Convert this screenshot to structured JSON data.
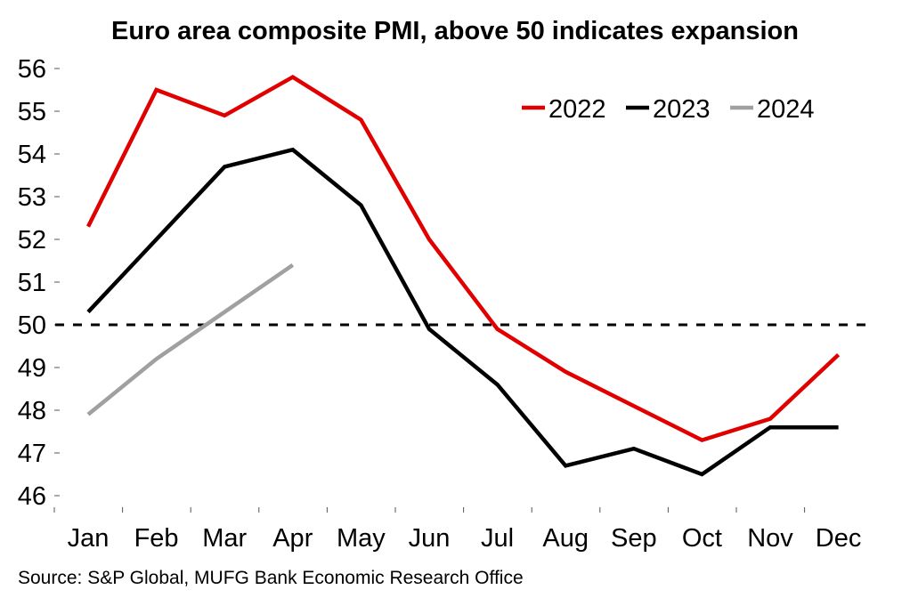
{
  "chart_data": {
    "type": "line",
    "title": "Euro area composite PMI, above 50 indicates expansion",
    "xlabel": "",
    "ylabel": "",
    "categories": [
      "Jan",
      "Feb",
      "Mar",
      "Apr",
      "May",
      "Jun",
      "Jul",
      "Aug",
      "Sep",
      "Oct",
      "Nov",
      "Dec"
    ],
    "ylim": [
      46,
      56
    ],
    "yticks": [
      46,
      47,
      48,
      49,
      50,
      51,
      52,
      53,
      54,
      55,
      56
    ],
    "grid": false,
    "legend_position": "top-right",
    "reference_line": {
      "value": 50,
      "style": "dashed",
      "color": "#000000"
    },
    "series": [
      {
        "name": "2022",
        "color": "#e00000",
        "values": [
          52.3,
          55.5,
          54.9,
          55.8,
          54.8,
          52.0,
          49.9,
          48.9,
          48.1,
          47.3,
          47.8,
          49.3
        ]
      },
      {
        "name": "2023",
        "color": "#000000",
        "values": [
          50.3,
          52.0,
          53.7,
          54.1,
          52.8,
          49.9,
          48.6,
          46.7,
          47.1,
          46.5,
          47.6,
          47.6
        ]
      },
      {
        "name": "2024",
        "color": "#a0a0a0",
        "values": [
          47.9,
          49.2,
          50.3,
          51.4
        ]
      }
    ],
    "source": "Source: S&P Global, MUFG Bank Economic Research Office"
  }
}
